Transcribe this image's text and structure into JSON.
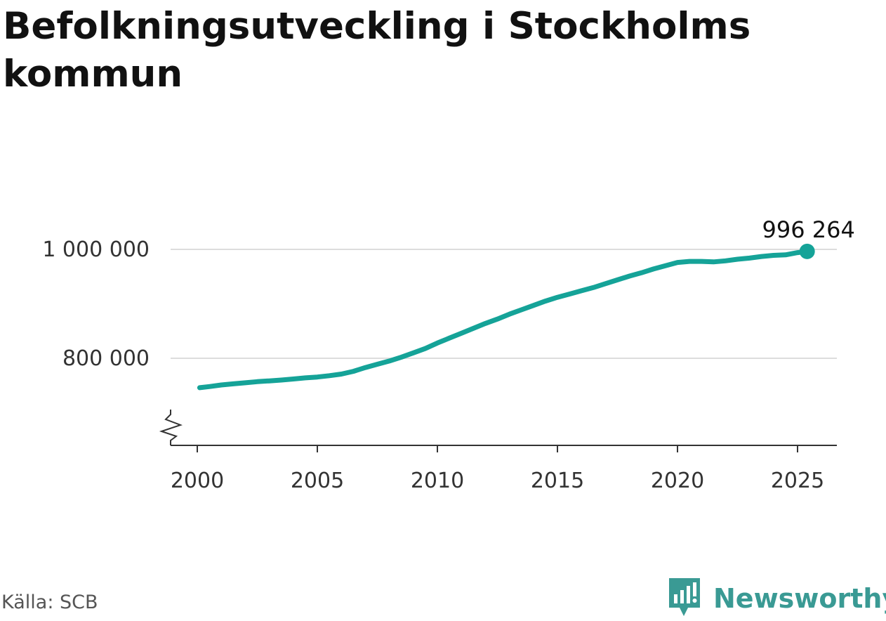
{
  "title": "Befolkningsutveckling i Stockholms kommun",
  "source": "Källa: SCB",
  "brand": {
    "name": "Newsworthy",
    "icon": "newsworthy-logo-icon"
  },
  "colors": {
    "line": "#15A398",
    "grid": "#DDDDDD",
    "axis": "#333333",
    "brand": "#3A9A94"
  },
  "chart_data": {
    "type": "line",
    "title": "Befolkningsutveckling i Stockholms kommun",
    "xlabel": "",
    "ylabel": "",
    "xlim": [
      1999.9,
      2026.5
    ],
    "ylim": [
      640000,
      1100000
    ],
    "y_axis_break": true,
    "x_ticks": [
      2000,
      2005,
      2010,
      2015,
      2020,
      2025
    ],
    "x_tick_labels": [
      "2000",
      "2005",
      "2010",
      "2015",
      "2020",
      "2025"
    ],
    "y_ticks": [
      800000,
      1000000
    ],
    "y_tick_labels": [
      "800 000",
      "1 000 000"
    ],
    "grid": "horizontal",
    "annotation": {
      "label": "996 264",
      "x": 2025.4,
      "y": 996264
    },
    "series": [
      {
        "x": [
          2000.1,
          2000.5,
          2001.0,
          2001.5,
          2002.0,
          2002.5,
          2003.0,
          2003.5,
          2004.0,
          2004.5,
          2005.0,
          2005.5,
          2006.0,
          2006.5,
          2007.0,
          2007.5,
          2008.0,
          2008.5,
          2009.0,
          2009.5,
          2010.0,
          2010.5,
          2011.0,
          2011.5,
          2012.0,
          2012.5,
          2013.0,
          2013.5,
          2014.0,
          2014.5,
          2015.0,
          2015.5,
          2016.0,
          2016.5,
          2017.0,
          2017.5,
          2018.0,
          2018.5,
          2019.0,
          2019.5,
          2020.0,
          2020.5,
          2021.0,
          2021.5,
          2022.0,
          2022.5,
          2023.0,
          2023.5,
          2024.0,
          2024.5,
          2025.0,
          2025.4
        ],
        "values": [
          746000,
          748000,
          751000,
          753000,
          755000,
          757000,
          758500,
          760000,
          762000,
          764000,
          765500,
          768000,
          771000,
          776000,
          783000,
          789000,
          795000,
          802000,
          810000,
          818000,
          828000,
          837000,
          846000,
          855000,
          864000,
          872000,
          881000,
          889000,
          897000,
          905000,
          912000,
          918000,
          924000,
          930000,
          937000,
          944000,
          951000,
          957000,
          964000,
          970000,
          976000,
          978000,
          978000,
          977000,
          979000,
          982000,
          984000,
          987000,
          989000,
          990000,
          994000,
          996264
        ]
      }
    ]
  }
}
